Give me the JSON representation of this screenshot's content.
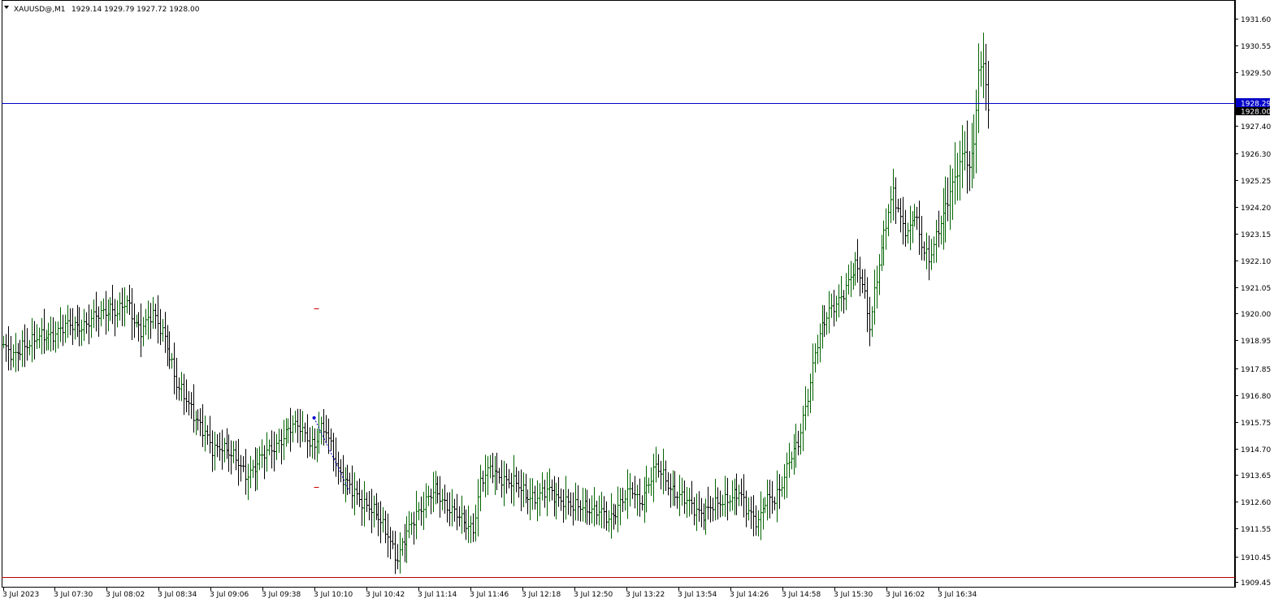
{
  "header": {
    "symbol": "XAUUSD@,M1",
    "ohlc": "1929.14 1929.79 1927.72 1928.00"
  },
  "colors": {
    "background": "#ffffff",
    "up_bar": "#006400",
    "down_bar": "#000000",
    "bid_line": "#0000c8",
    "bid_label_bg": "#0000c8",
    "last_label_bg": "#000000",
    "low_line": "#b40000",
    "trend_line": "#0000cc",
    "marker": "#cc0000"
  },
  "chart_data": {
    "type": "ohlc",
    "instrument": "XAUUSD@",
    "timeframe": "M1",
    "ylim": [
      1909.8,
      1932.0
    ],
    "y_ticks": [
      "1931.60",
      "1930.55",
      "1929.50",
      "1927.40",
      "1926.30",
      "1925.25",
      "1924.20",
      "1923.15",
      "1922.10",
      "1921.05",
      "1920.00",
      "1918.95",
      "1917.85",
      "1916.80",
      "1915.75",
      "1914.70",
      "1913.65",
      "1912.60",
      "1911.55",
      "1910.45",
      "1909.45"
    ],
    "x_tick_labels": [
      "3 Jul 2023",
      "3 Jul 07:30",
      "3 Jul 08:02",
      "3 Jul 08:34",
      "3 Jul 09:06",
      "3 Jul 09:38",
      "3 Jul 10:10",
      "3 Jul 10:42",
      "3 Jul 11:14",
      "3 Jul 11:46",
      "3 Jul 12:18",
      "3 Jul 12:50",
      "3 Jul 13:22",
      "3 Jul 13:54",
      "3 Jul 14:26",
      "3 Jul 14:58",
      "3 Jul 15:30",
      "3 Jul 16:02",
      "3 Jul 16:34"
    ],
    "price_labels": {
      "bid": "1928.29",
      "bid_value": 1928.29,
      "last": "1928.00",
      "last_value": 1928.0
    },
    "low_line_value": 1909.65,
    "close_path": [
      [
        0,
        1918.7
      ],
      [
        4,
        1918.2
      ],
      [
        8,
        1918.8
      ],
      [
        15,
        1919.0
      ],
      [
        22,
        1919.3
      ],
      [
        28,
        1919.5
      ],
      [
        35,
        1919.6
      ],
      [
        40,
        1919.9
      ],
      [
        45,
        1920.3
      ],
      [
        48,
        1920.0
      ],
      [
        52,
        1920.4
      ],
      [
        55,
        1919.8
      ],
      [
        58,
        1919.4
      ],
      [
        63,
        1919.9
      ],
      [
        68,
        1919.2
      ],
      [
        70,
        1918.4
      ],
      [
        73,
        1917.1
      ],
      [
        78,
        1916.5
      ],
      [
        83,
        1915.6
      ],
      [
        88,
        1914.6
      ],
      [
        92,
        1914.9
      ],
      [
        97,
        1914.3
      ],
      [
        102,
        1913.7
      ],
      [
        107,
        1914.1
      ],
      [
        112,
        1914.6
      ],
      [
        117,
        1915.1
      ],
      [
        122,
        1915.5
      ],
      [
        125,
        1915.6
      ],
      [
        128,
        1915.2
      ],
      [
        131,
        1914.7
      ],
      [
        133,
        1915.3
      ],
      [
        136,
        1915.4
      ],
      [
        139,
        1914.6
      ],
      [
        142,
        1913.6
      ],
      [
        146,
        1913.1
      ],
      [
        150,
        1912.8
      ],
      [
        154,
        1912.4
      ],
      [
        158,
        1911.9
      ],
      [
        162,
        1911.4
      ],
      [
        166,
        1910.3
      ],
      [
        170,
        1911.3
      ],
      [
        174,
        1912.2
      ],
      [
        178,
        1912.6
      ],
      [
        182,
        1913.0
      ],
      [
        186,
        1912.6
      ],
      [
        190,
        1912.2
      ],
      [
        194,
        1911.7
      ],
      [
        198,
        1911.6
      ],
      [
        201,
        1913.4
      ],
      [
        205,
        1913.8
      ],
      [
        210,
        1913.6
      ],
      [
        215,
        1913.3
      ],
      [
        220,
        1912.9
      ],
      [
        225,
        1912.8
      ],
      [
        230,
        1913.0
      ],
      [
        236,
        1912.7
      ],
      [
        240,
        1912.3
      ],
      [
        245,
        1912.5
      ],
      [
        250,
        1912.2
      ],
      [
        255,
        1911.9
      ],
      [
        260,
        1912.6
      ],
      [
        265,
        1913.0
      ],
      [
        268,
        1912.6
      ],
      [
        271,
        1913.2
      ],
      [
        275,
        1913.9
      ],
      [
        278,
        1913.6
      ],
      [
        282,
        1913.1
      ],
      [
        285,
        1912.8
      ],
      [
        290,
        1912.4
      ],
      [
        295,
        1912.2
      ],
      [
        300,
        1912.4
      ],
      [
        305,
        1912.8
      ],
      [
        310,
        1912.9
      ],
      [
        313,
        1912.3
      ],
      [
        318,
        1911.9
      ],
      [
        321,
        1912.6
      ],
      [
        325,
        1912.6
      ],
      [
        328,
        1913.4
      ],
      [
        331,
        1914.3
      ],
      [
        335,
        1914.8
      ],
      [
        339,
        1916.8
      ],
      [
        342,
        1918.6
      ],
      [
        345,
        1919.4
      ],
      [
        348,
        1920.0
      ],
      [
        352,
        1920.6
      ],
      [
        356,
        1921.2
      ],
      [
        359,
        1921.8
      ],
      [
        362,
        1921.3
      ],
      [
        365,
        1919.6
      ],
      [
        367,
        1920.8
      ],
      [
        369,
        1921.9
      ],
      [
        372,
        1923.5
      ],
      [
        375,
        1924.9
      ],
      [
        378,
        1923.8
      ],
      [
        381,
        1923.0
      ],
      [
        384,
        1923.9
      ],
      [
        387,
        1922.8
      ],
      [
        390,
        1922.2
      ],
      [
        393,
        1922.9
      ],
      [
        396,
        1923.8
      ],
      [
        399,
        1924.9
      ],
      [
        402,
        1925.7
      ],
      [
        405,
        1926.3
      ],
      [
        407,
        1925.5
      ],
      [
        409,
        1926.8
      ],
      [
        411,
        1929.5
      ],
      [
        413,
        1930.1
      ],
      [
        415,
        1928.0
      ]
    ],
    "trend_line": {
      "from": [
        131,
        1915.9
      ],
      "to": [
        146,
        1913.0
      ]
    },
    "markers": [
      [
        132,
        1920.2
      ],
      [
        132,
        1913.2
      ]
    ]
  }
}
